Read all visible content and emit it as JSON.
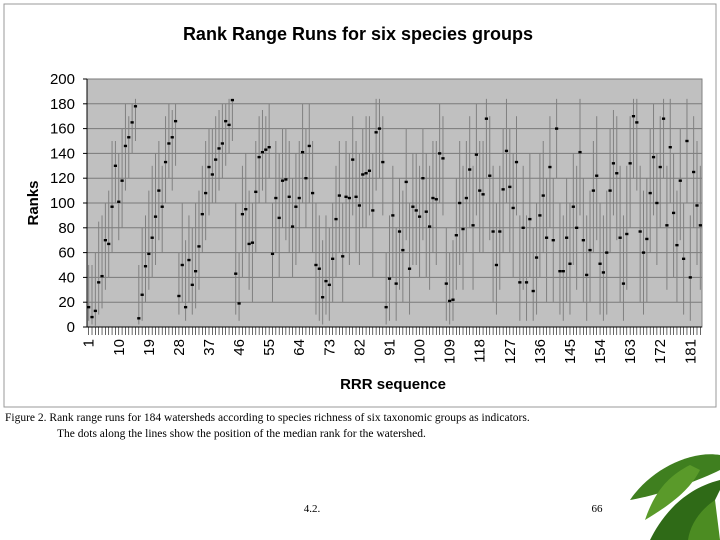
{
  "chart_data": {
    "type": "range",
    "title": "Rank Range Runs for six species groups",
    "y_label": "Ranks",
    "x_label": "RRR sequence",
    "ylim": [
      0,
      200
    ],
    "yticks": [
      0,
      20,
      40,
      60,
      80,
      100,
      120,
      140,
      160,
      180,
      200
    ],
    "grid": true,
    "plot_color": "#c0c0c0",
    "line_color": "#808080",
    "dot_color": "#000000",
    "categories": [
      "1",
      null,
      null,
      null,
      null,
      null,
      null,
      null,
      null,
      "10",
      null,
      null,
      null,
      null,
      null,
      null,
      null,
      null,
      "19",
      null,
      null,
      null,
      null,
      null,
      null,
      null,
      null,
      "28",
      null,
      null,
      null,
      null,
      null,
      null,
      null,
      null,
      "37",
      null,
      null,
      null,
      null,
      null,
      null,
      null,
      null,
      "46",
      null,
      null,
      null,
      null,
      null,
      null,
      null,
      null,
      "55",
      null,
      null,
      null,
      null,
      null,
      null,
      null,
      null,
      "64",
      null,
      null,
      null,
      null,
      null,
      null,
      null,
      null,
      "73",
      null,
      null,
      null,
      null,
      null,
      null,
      null,
      null,
      "82",
      null,
      null,
      null,
      null,
      null,
      null,
      null,
      null,
      "91",
      null,
      null,
      null,
      null,
      null,
      null,
      null,
      null,
      "100",
      null,
      null,
      null,
      null,
      null,
      null,
      null,
      null,
      "109",
      null,
      null,
      null,
      null,
      null,
      null,
      null,
      null,
      "118",
      null,
      null,
      null,
      null,
      null,
      null,
      null,
      null,
      "127",
      null,
      null,
      null,
      null,
      null,
      null,
      null,
      null,
      "136",
      null,
      null,
      null,
      null,
      null,
      null,
      null,
      null,
      "145",
      null,
      null,
      null,
      null,
      null,
      null,
      null,
      null,
      "154",
      null,
      null,
      null,
      null,
      null,
      null,
      null,
      null,
      "163",
      null,
      null,
      null,
      null,
      null,
      null,
      null,
      null,
      "172",
      null,
      null,
      null,
      null,
      null,
      null,
      null,
      null,
      "181",
      null,
      null,
      null
    ],
    "values": [
      16,
      8,
      13,
      36,
      41,
      70,
      67,
      97,
      130,
      101,
      118,
      146,
      153,
      165,
      178,
      7,
      26,
      49,
      59,
      72,
      89,
      110,
      97,
      133,
      148,
      153,
      166,
      25,
      50,
      16,
      54,
      34,
      45,
      65,
      91,
      108,
      129,
      123,
      135,
      144,
      148,
      166,
      163,
      183,
      43,
      19,
      91,
      95,
      67,
      68,
      109,
      137,
      141,
      143,
      145,
      59,
      104,
      88,
      118,
      119,
      105,
      81,
      97,
      104,
      141,
      120,
      146,
      108,
      50,
      47,
      24,
      37,
      34,
      55,
      87,
      106,
      57,
      105,
      104,
      135,
      105,
      98,
      123,
      124,
      126,
      94,
      157,
      160,
      133,
      16,
      39,
      90,
      35,
      77,
      62,
      117,
      47,
      97,
      94,
      89,
      120,
      93,
      81,
      104,
      103,
      140,
      136,
      35,
      21,
      22,
      74,
      100,
      79,
      104,
      127,
      82,
      139,
      110,
      107,
      168,
      122,
      77,
      50,
      77,
      111,
      142,
      113,
      96,
      133,
      36,
      80,
      36,
      87,
      29,
      56,
      90,
      106,
      72,
      129,
      70,
      160,
      45,
      45,
      72,
      51,
      97,
      80,
      141,
      70,
      42,
      62,
      110,
      122,
      51,
      44,
      60,
      110,
      132,
      124,
      72,
      35,
      75,
      132,
      170,
      165,
      77,
      60,
      71,
      108,
      137,
      100,
      129,
      168,
      82,
      145,
      92,
      66,
      118,
      55,
      150,
      40,
      125,
      98,
      82
    ],
    "low": [
      5,
      2,
      1,
      10,
      15,
      30,
      40,
      60,
      100,
      70,
      80,
      110,
      120,
      140,
      150,
      2,
      5,
      20,
      30,
      40,
      50,
      70,
      60,
      100,
      120,
      110,
      130,
      10,
      20,
      5,
      20,
      10,
      15,
      30,
      60,
      70,
      90,
      100,
      100,
      110,
      120,
      130,
      140,
      150,
      10,
      5,
      40,
      60,
      30,
      20,
      60,
      100,
      110,
      100,
      120,
      20,
      60,
      40,
      80,
      70,
      60,
      40,
      50,
      60,
      100,
      80,
      100,
      60,
      10,
      5,
      2,
      10,
      5,
      20,
      40,
      60,
      20,
      60,
      50,
      90,
      60,
      50,
      80,
      80,
      90,
      40,
      110,
      120,
      90,
      2,
      5,
      40,
      5,
      30,
      20,
      70,
      10,
      50,
      50,
      40,
      70,
      40,
      30,
      60,
      50,
      100,
      90,
      5,
      2,
      5,
      30,
      50,
      30,
      60,
      80,
      30,
      90,
      60,
      60,
      120,
      70,
      20,
      10,
      30,
      60,
      100,
      60,
      40,
      90,
      5,
      30,
      5,
      40,
      5,
      10,
      40,
      60,
      20,
      80,
      20,
      120,
      10,
      5,
      20,
      10,
      50,
      30,
      90,
      20,
      5,
      20,
      60,
      70,
      10,
      5,
      10,
      60,
      90,
      70,
      20,
      5,
      30,
      80,
      120,
      110,
      20,
      10,
      20,
      60,
      90,
      50,
      80,
      120,
      30,
      100,
      40,
      20,
      70,
      10,
      100,
      5,
      80,
      50,
      30
    ],
    "high": [
      50,
      50,
      60,
      85,
      90,
      100,
      110,
      150,
      150,
      140,
      160,
      180,
      170,
      180,
      184,
      50,
      80,
      90,
      110,
      130,
      140,
      150,
      130,
      170,
      180,
      175,
      180,
      60,
      100,
      70,
      90,
      80,
      100,
      110,
      130,
      150,
      160,
      160,
      170,
      175,
      180,
      180,
      184,
      184,
      100,
      60,
      130,
      140,
      110,
      100,
      150,
      170,
      175,
      170,
      180,
      100,
      150,
      140,
      160,
      160,
      150,
      120,
      140,
      150,
      180,
      160,
      180,
      150,
      100,
      90,
      70,
      90,
      80,
      100,
      130,
      150,
      100,
      150,
      140,
      170,
      150,
      140,
      160,
      170,
      170,
      140,
      184,
      184,
      170,
      60,
      90,
      130,
      80,
      120,
      110,
      160,
      100,
      140,
      140,
      130,
      160,
      140,
      130,
      150,
      150,
      180,
      170,
      80,
      60,
      70,
      120,
      150,
      130,
      150,
      170,
      130,
      180,
      150,
      150,
      184,
      170,
      130,
      100,
      130,
      160,
      184,
      160,
      140,
      170,
      90,
      130,
      90,
      140,
      80,
      100,
      140,
      150,
      120,
      170,
      120,
      184,
      100,
      90,
      120,
      100,
      140,
      130,
      184,
      120,
      90,
      110,
      150,
      170,
      100,
      90,
      110,
      160,
      175,
      170,
      130,
      90,
      130,
      170,
      184,
      184,
      130,
      110,
      120,
      160,
      180,
      140,
      170,
      184,
      130,
      184,
      140,
      110,
      160,
      100,
      184,
      90,
      170,
      150,
      130
    ]
  },
  "caption": [
    "Figure 2.  Rank range runs for 184 watersheds according to species richness of six taxonomic groups as indicators.",
    "The dots along the lines show the position of the median rank for the watershed."
  ],
  "footer": {
    "section": "4.2.",
    "page": "66"
  }
}
